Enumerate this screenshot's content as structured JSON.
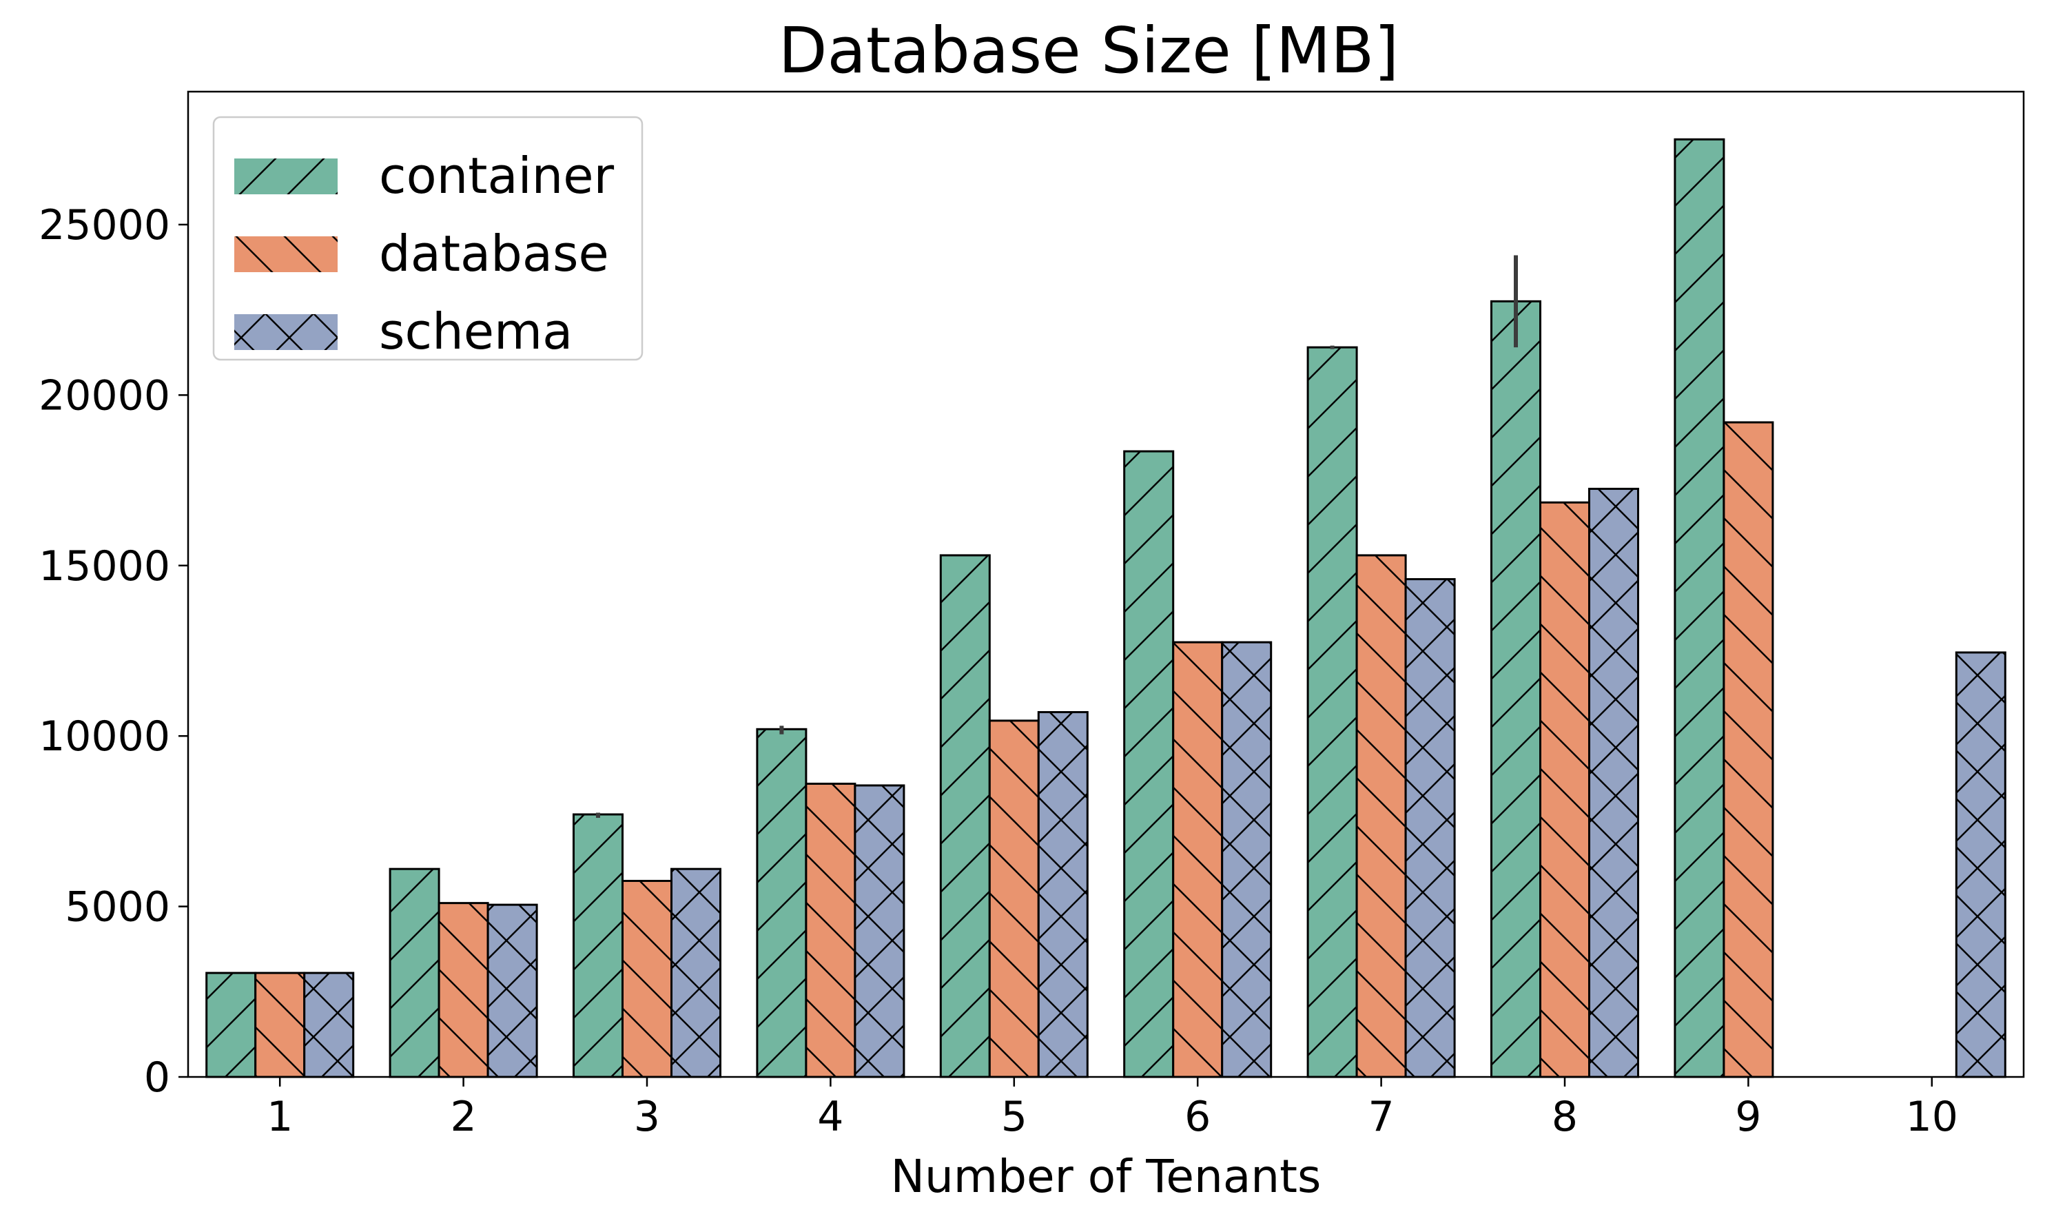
{
  "chart_data": {
    "type": "bar",
    "title": "Database Size [MB]",
    "xlabel": "Number of Tenants",
    "ylabel": "",
    "categories": [
      "1",
      "2",
      "3",
      "4",
      "5",
      "6",
      "7",
      "8",
      "9",
      "10"
    ],
    "ylim": [
      0,
      28900
    ],
    "yticks": [
      0,
      5000,
      10000,
      15000,
      20000,
      25000
    ],
    "grid": false,
    "legend_position": "top-left",
    "series": [
      {
        "name": "container",
        "color": "#73b6a0",
        "hatch": "forward-diagonal",
        "values": [
          3050,
          6100,
          7700,
          10200,
          15300,
          18350,
          21400,
          22750,
          27500,
          null
        ],
        "errors": [
          [
            3050,
            3050
          ],
          [
            6100,
            6100
          ],
          [
            7600,
            7750
          ],
          [
            10050,
            10300
          ],
          [
            15300,
            15300
          ],
          [
            18350,
            18350
          ],
          [
            21350,
            21450
          ],
          [
            21400,
            24100
          ],
          [
            27500,
            27500
          ],
          null
        ]
      },
      {
        "name": "database",
        "color": "#e9946f",
        "hatch": "back-diagonal",
        "values": [
          3050,
          5100,
          5750,
          8600,
          10450,
          12750,
          15300,
          16850,
          19200,
          null
        ],
        "errors": null
      },
      {
        "name": "schema",
        "color": "#94a3c3",
        "hatch": "cross",
        "values": [
          3050,
          5050,
          6100,
          8550,
          10700,
          12750,
          14600,
          17250,
          null,
          12450
        ],
        "errors": null
      }
    ]
  }
}
